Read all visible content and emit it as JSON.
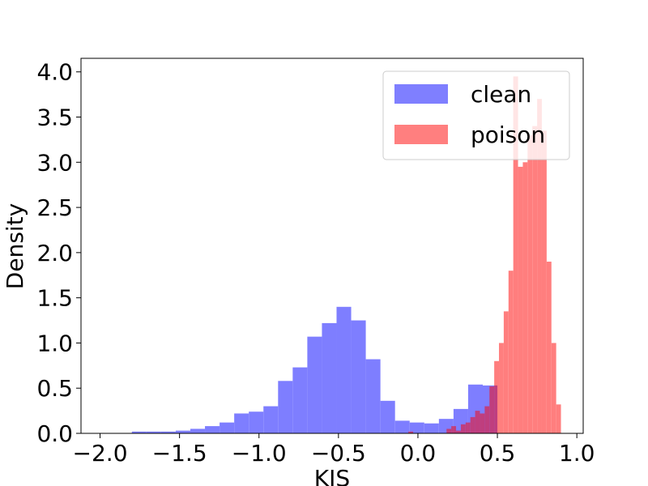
{
  "chart_data": {
    "type": "histogram",
    "xlabel": "KIS",
    "ylabel": "Density",
    "xlim": [
      -2.12,
      1.04
    ],
    "ylim": [
      0,
      4.15
    ],
    "xticks": [
      {
        "value": -2.0,
        "label": "−2.0"
      },
      {
        "value": -1.5,
        "label": "−1.5"
      },
      {
        "value": -1.0,
        "label": "−1.0"
      },
      {
        "value": -0.5,
        "label": "−0.5"
      },
      {
        "value": 0.0,
        "label": "0.0"
      },
      {
        "value": 0.5,
        "label": "0.5"
      },
      {
        "value": 1.0,
        "label": "1.0"
      }
    ],
    "yticks": [
      {
        "value": 0,
        "label": "0.0"
      },
      {
        "value": 0.5,
        "label": "0.5"
      },
      {
        "value": 1.0,
        "label": "1.0"
      },
      {
        "value": 1.5,
        "label": "1.5"
      },
      {
        "value": 2.0,
        "label": "2.0"
      },
      {
        "value": 2.5,
        "label": "2.5"
      },
      {
        "value": 3.0,
        "label": "3.0"
      },
      {
        "value": 3.5,
        "label": "3.5"
      },
      {
        "value": 4.0,
        "label": "4.0"
      }
    ],
    "legend": "upper right",
    "alpha": 0.5,
    "series": [
      {
        "name": "clean",
        "color": "#0000ff",
        "bins": [
          -1.8,
          -1.708,
          -1.616,
          -1.524,
          -1.432,
          -1.34,
          -1.248,
          -1.156,
          -1.064,
          -0.972,
          -0.88,
          -0.788,
          -0.696,
          -0.604,
          -0.512,
          -0.42,
          -0.328,
          -0.236,
          -0.144,
          -0.052,
          0.04,
          0.132,
          0.224,
          0.316,
          0.408,
          0.5
        ],
        "values": [
          0.02,
          0.02,
          0.02,
          0.03,
          0.05,
          0.08,
          0.12,
          0.22,
          0.24,
          0.3,
          0.58,
          0.73,
          1.07,
          1.22,
          1.4,
          1.25,
          0.82,
          0.36,
          0.14,
          0.12,
          0.11,
          0.16,
          0.27,
          0.54,
          0.53
        ]
      },
      {
        "name": "poison",
        "color": "#ff0000",
        "bins": [
          -0.06,
          -0.03,
          0.0,
          0.03,
          0.06,
          0.09,
          0.12,
          0.15,
          0.18,
          0.21,
          0.24,
          0.27,
          0.3,
          0.33,
          0.36,
          0.39,
          0.42,
          0.45,
          0.48,
          0.51,
          0.54,
          0.57,
          0.6,
          0.63,
          0.66,
          0.69,
          0.72,
          0.75,
          0.78,
          0.81,
          0.84,
          0.87,
          0.9
        ],
        "values": [
          0.02,
          0,
          0,
          0,
          0,
          0,
          0,
          0,
          0.05,
          0.08,
          0.03,
          0.1,
          0.12,
          0.18,
          0.25,
          0.22,
          0.3,
          0.52,
          0.8,
          1.0,
          1.35,
          1.8,
          3.95,
          2.95,
          3.0,
          3.3,
          3.4,
          3.7,
          3.35,
          1.9,
          1.0,
          0.32
        ]
      }
    ]
  }
}
